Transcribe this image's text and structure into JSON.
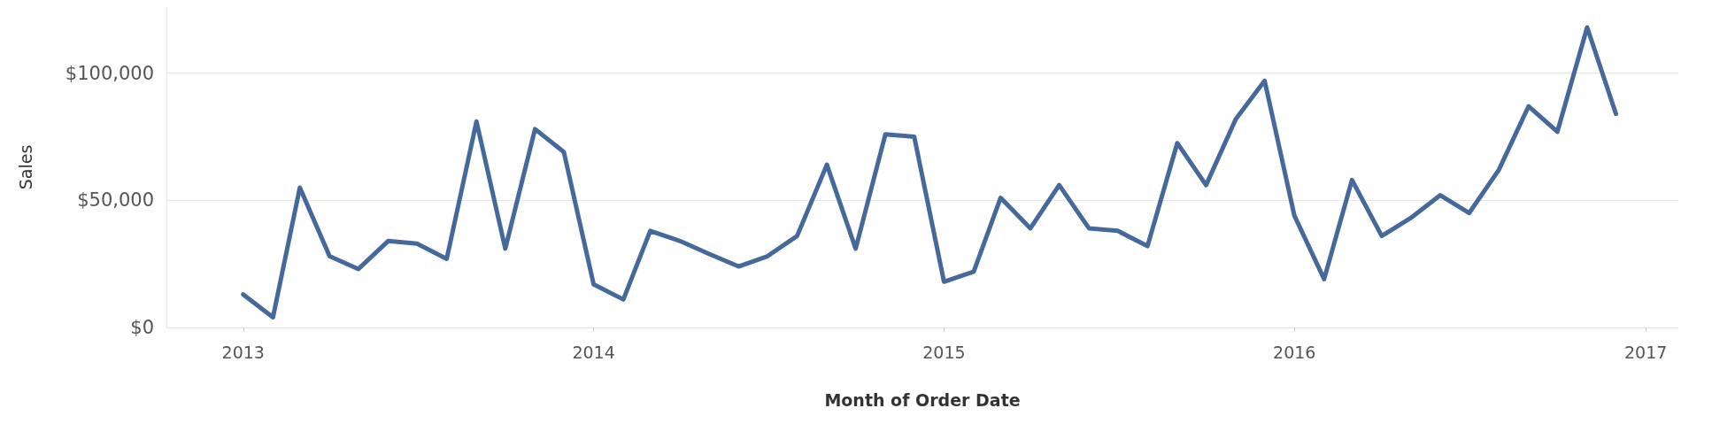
{
  "chart_data": {
    "type": "line",
    "xlabel": "Month of Order Date",
    "ylabel": "Sales",
    "x": [
      "2013-01",
      "2013-02",
      "2013-03",
      "2013-04",
      "2013-05",
      "2013-06",
      "2013-07",
      "2013-08",
      "2013-09",
      "2013-10",
      "2013-11",
      "2013-12",
      "2014-01",
      "2014-02",
      "2014-03",
      "2014-04",
      "2014-05",
      "2014-06",
      "2014-07",
      "2014-08",
      "2014-09",
      "2014-10",
      "2014-11",
      "2014-12",
      "2015-01",
      "2015-02",
      "2015-03",
      "2015-04",
      "2015-05",
      "2015-06",
      "2015-07",
      "2015-08",
      "2015-09",
      "2015-10",
      "2015-11",
      "2015-12",
      "2016-01",
      "2016-02",
      "2016-03",
      "2016-04",
      "2016-05",
      "2016-06",
      "2016-07",
      "2016-08",
      "2016-09",
      "2016-10",
      "2016-11",
      "2016-12"
    ],
    "series": [
      {
        "color": "#45699b",
        "values": [
          13000,
          4000,
          55000,
          28000,
          23000,
          34000,
          33000,
          27000,
          81000,
          31000,
          78000,
          69000,
          17000,
          11000,
          38000,
          34000,
          29000,
          24000,
          28000,
          36000,
          64000,
          31000,
          76000,
          75000,
          18000,
          22000,
          51000,
          39000,
          56000,
          39000,
          38000,
          32000,
          72500,
          56000,
          82000,
          97000,
          44000,
          19000,
          58000,
          36000,
          43000,
          52000,
          45000,
          62000,
          87000,
          77000,
          118000,
          84000
        ]
      }
    ],
    "xlim": [
      "2012-10-13",
      "2017-02-04"
    ],
    "xticks": [
      "2013",
      "2014",
      "2015",
      "2016",
      "2017"
    ],
    "ylim": [
      0,
      126000
    ],
    "yticks": [
      {
        "value": 0,
        "label": "$0"
      },
      {
        "value": 50000,
        "label": "$50,000"
      },
      {
        "value": 100000,
        "label": "$100,000"
      }
    ],
    "grid": "y",
    "marker": "none",
    "line_style": "solid"
  }
}
